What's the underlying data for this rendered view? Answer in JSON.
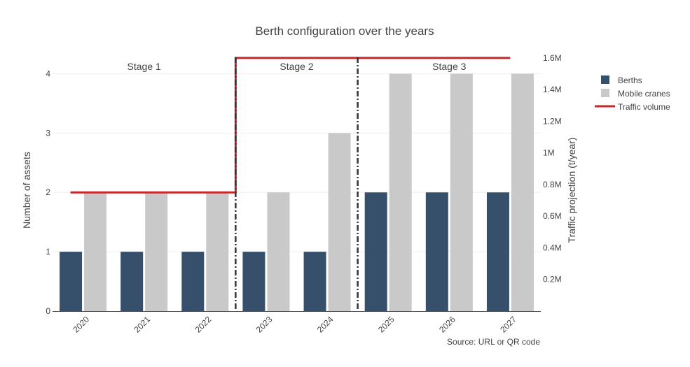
{
  "chart_data": {
    "type": "bar",
    "title": "Berth configuration over the years",
    "source": "Source: URL or QR code",
    "categories": [
      "2020",
      "2021",
      "2022",
      "2023",
      "2024",
      "2025",
      "2026",
      "2027"
    ],
    "series": [
      {
        "name": "Berths",
        "kind": "bar",
        "axis": "left",
        "color": "#36506b",
        "values": [
          1,
          1,
          1,
          1,
          1,
          2,
          2,
          2
        ]
      },
      {
        "name": "Mobile cranes",
        "kind": "bar",
        "axis": "left",
        "color": "#c9c9c9",
        "values": [
          2,
          2,
          2,
          2,
          3,
          4,
          4,
          4
        ]
      },
      {
        "name": "Traffic volume",
        "kind": "step-line",
        "axis": "right",
        "color": "#c8272a",
        "segments": [
          {
            "from": "2020",
            "to": "2023",
            "value": 750000
          },
          {
            "from": "2023",
            "to": "2027",
            "value": 1600000
          }
        ]
      }
    ],
    "y_left": {
      "label": "Number of assets",
      "range": [
        0,
        4.3
      ],
      "ticks": [
        "0",
        "1",
        "2",
        "3",
        "4"
      ]
    },
    "y_right": {
      "label": "Traffic projection (t/year)",
      "range": [
        0,
        1.6125
      ],
      "ticks": [
        "0.2M",
        "0.4M",
        "0.6M",
        "0.8M",
        "1M",
        "1.2M",
        "1.4M",
        "1.6M"
      ]
    },
    "stages": [
      {
        "label": "Stage 1"
      },
      {
        "label": "Stage 2"
      },
      {
        "label": "Stage 3"
      }
    ],
    "stage_boundaries": [
      "2023",
      "2025"
    ],
    "grid": true,
    "legend_position": "top-right"
  }
}
